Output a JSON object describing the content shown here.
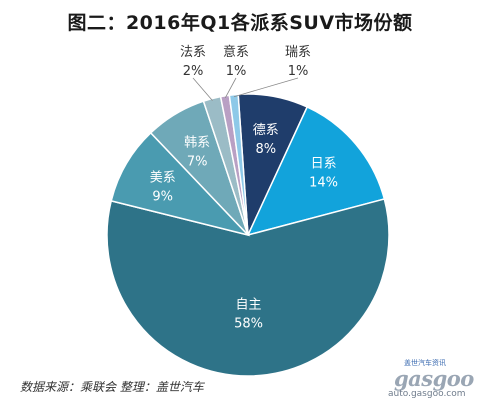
{
  "title": "图二：2016年Q1各派系SUV市场份额",
  "source_note": "数据来源：乘联会  整理：盖世汽车",
  "watermark": {
    "top_text": "盖世汽车资讯",
    "logo_text": "gasgoo",
    "url": "auto.gasgoo.com"
  },
  "chart_data": {
    "type": "pie",
    "title": "图二：2016年Q1各派系SUV市场份额",
    "slices": [
      {
        "label": "德系",
        "value": 8,
        "value_label": "8%",
        "color": "#1f3d6b",
        "label_inside": true,
        "text_color": "#ffffff"
      },
      {
        "label": "日系",
        "value": 14,
        "value_label": "14%",
        "color": "#12a3db",
        "label_inside": true,
        "text_color": "#ffffff"
      },
      {
        "label": "自主",
        "value": 58,
        "value_label": "58%",
        "color": "#2e7388",
        "label_inside": true,
        "text_color": "#ffffff"
      },
      {
        "label": "美系",
        "value": 9,
        "value_label": "9%",
        "color": "#4a9bb0",
        "label_inside": true,
        "text_color": "#ffffff"
      },
      {
        "label": "韩系",
        "value": 7,
        "value_label": "7%",
        "color": "#6fa9b8",
        "label_inside": true,
        "text_color": "#ffffff"
      },
      {
        "label": "法系",
        "value": 2,
        "value_label": "2%",
        "color": "#9bbcc6",
        "label_inside": false,
        "text_color": "#333333"
      },
      {
        "label": "意系",
        "value": 1,
        "value_label": "1%",
        "color": "#b9a0c4",
        "label_inside": false,
        "text_color": "#333333"
      },
      {
        "label": "瑞系",
        "value": 1,
        "value_label": "1%",
        "color": "#8ec9e8",
        "label_inside": false,
        "text_color": "#333333"
      }
    ]
  }
}
